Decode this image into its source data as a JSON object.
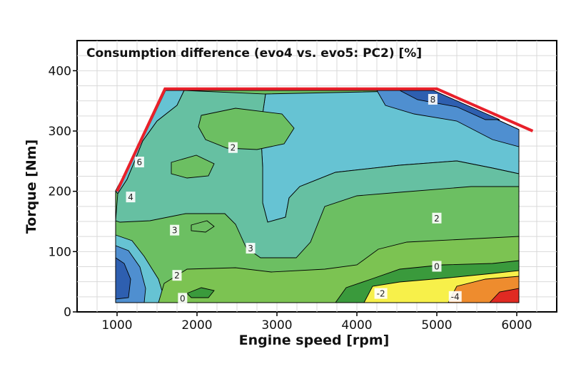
{
  "chart_data": {
    "type": "heatmap",
    "title": "Consumption difference (evo4 vs. evo5:  PC2) [%]",
    "xlabel": "Engine speed [rpm]",
    "ylabel": "Torque [Nm]",
    "xlim": [
      500,
      6500
    ],
    "ylim": [
      0,
      450
    ],
    "xticks": [
      1000,
      2000,
      3000,
      4000,
      5000,
      6000
    ],
    "yticks": [
      0,
      100,
      200,
      300,
      400
    ],
    "grid": true,
    "full_load_line": [
      {
        "x": 1000,
        "y": 200
      },
      {
        "x": 1600,
        "y": 370
      },
      {
        "x": 5000,
        "y": 370
      },
      {
        "x": 6200,
        "y": 300
      }
    ],
    "colors": {
      "full_load_line": "#e8202a",
      "level_8_or_more": "#2e5fb0",
      "level_6": "#4f8fd0",
      "level_4": "#66c3d3",
      "level_3": "#66c0a2",
      "level_2": "#6cbf62",
      "level_1": "#7cc352",
      "level_0": "#3a9a3c",
      "level_neg2": "#f7f04a",
      "level_neg4": "#ee8c2e",
      "level_neg6": "#e02a22"
    },
    "contour_labels": [
      {
        "text": "8",
        "x": 4950,
        "y": 352
      },
      {
        "text": "6",
        "x": 1280,
        "y": 248
      },
      {
        "text": "4",
        "x": 1170,
        "y": 190
      },
      {
        "text": "2",
        "x": 2450,
        "y": 272
      },
      {
        "text": "3",
        "x": 1720,
        "y": 135
      },
      {
        "text": "3",
        "x": 2670,
        "y": 105
      },
      {
        "text": "2",
        "x": 5000,
        "y": 155
      },
      {
        "text": "2",
        "x": 1750,
        "y": 60
      },
      {
        "text": "0",
        "x": 1820,
        "y": 22
      },
      {
        "text": "0",
        "x": 5000,
        "y": 75
      },
      {
        "text": "-2",
        "x": 4300,
        "y": 30
      },
      {
        "text": "-4",
        "x": 5230,
        "y": 25
      }
    ]
  }
}
